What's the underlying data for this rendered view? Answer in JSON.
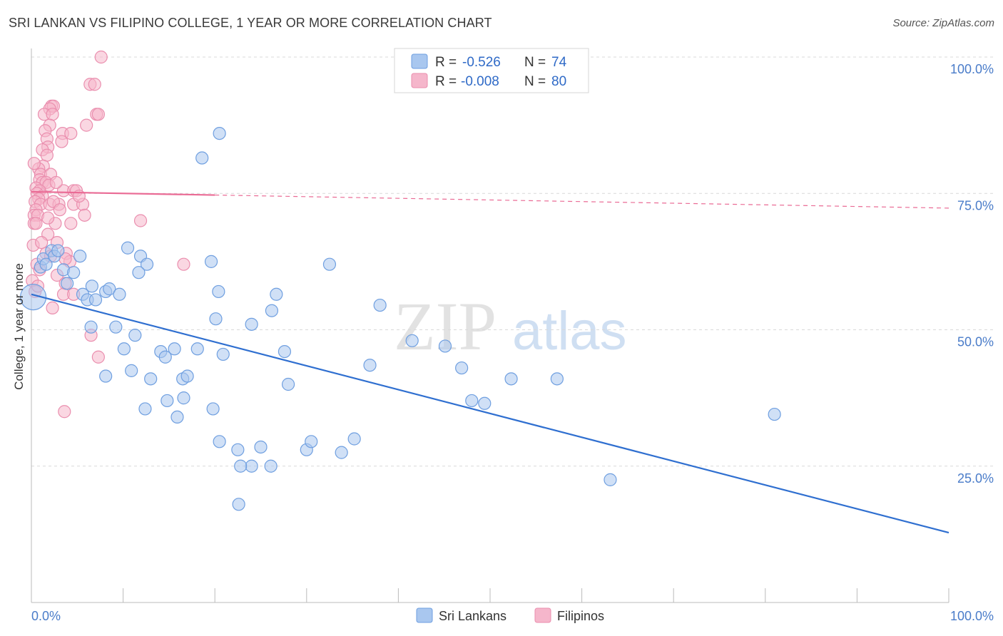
{
  "title": "SRI LANKAN VS FILIPINO COLLEGE, 1 YEAR OR MORE CORRELATION CHART",
  "source": "Source: ZipAtlas.com",
  "watermark": {
    "zip": "ZIP",
    "atlas": "atlas"
  },
  "colors": {
    "blue_fill": "#a9c7ef",
    "blue_stroke": "#6f9fe0",
    "blue_line": "#2f6fd0",
    "pink_fill": "#f5b6cb",
    "pink_stroke": "#ea8eae",
    "pink_line": "#ea6b95",
    "grid": "#d9d9d9",
    "axis_text": "#4a7cc9"
  },
  "chart_data": {
    "type": "scatter",
    "title": "SRI LANKAN VS FILIPINO COLLEGE, 1 YEAR OR MORE CORRELATION CHART",
    "xlabel": "",
    "ylabel": "College, 1 year or more",
    "xlim": [
      0,
      100
    ],
    "ylim": [
      0,
      100
    ],
    "x_tick_labels": [
      "0.0%",
      "100.0%"
    ],
    "y_tick_labels": [
      {
        "value": 100,
        "label": "100.0%"
      },
      {
        "value": 75,
        "label": "75.0%"
      },
      {
        "value": 50,
        "label": "50.0%"
      },
      {
        "value": 25,
        "label": "25.0%"
      }
    ],
    "legend": [
      {
        "name": "Sri Lankans",
        "r_label": "R =",
        "r": "-0.526",
        "n_label": "N =",
        "n": "74"
      },
      {
        "name": "Filipinos",
        "r_label": "R =",
        "r": "-0.008",
        "n_label": "N =",
        "n": "80"
      }
    ],
    "series": [
      {
        "name": "Sri Lankans",
        "trend": {
          "x0": 0,
          "y0": 56.5,
          "x1": 100,
          "y1": 12.8
        },
        "points": [
          [
            0.2,
            56
          ],
          [
            1.0,
            61.5
          ],
          [
            1.3,
            63
          ],
          [
            1.6,
            62
          ],
          [
            2.2,
            64.5
          ],
          [
            2.5,
            63.5
          ],
          [
            2.9,
            64.5
          ],
          [
            3.5,
            61
          ],
          [
            3.9,
            58.5
          ],
          [
            4.6,
            60.5
          ],
          [
            5.3,
            63.5
          ],
          [
            5.6,
            56.5
          ],
          [
            6.1,
            55.5
          ],
          [
            6.6,
            58
          ],
          [
            7.0,
            55.5
          ],
          [
            8.1,
            57
          ],
          [
            8.5,
            57.5
          ],
          [
            9.6,
            56.5
          ],
          [
            10.5,
            65
          ],
          [
            11.9,
            63.5
          ],
          [
            12.6,
            62
          ],
          [
            11.7,
            60.5
          ],
          [
            6.5,
            50.5
          ],
          [
            9.2,
            50.5
          ],
          [
            11.3,
            49
          ],
          [
            10.1,
            46.5
          ],
          [
            14.1,
            46
          ],
          [
            14.6,
            45
          ],
          [
            15.6,
            46.5
          ],
          [
            18.1,
            46.5
          ],
          [
            20.9,
            45.5
          ],
          [
            20.1,
            52
          ],
          [
            19.6,
            62.5
          ],
          [
            20.4,
            57
          ],
          [
            26.7,
            56.5
          ],
          [
            26.2,
            53.5
          ],
          [
            24.0,
            51
          ],
          [
            27.6,
            46
          ],
          [
            32.5,
            62
          ],
          [
            36.9,
            43.5
          ],
          [
            38.0,
            54.5
          ],
          [
            41.5,
            48
          ],
          [
            45.1,
            47
          ],
          [
            46.9,
            43
          ],
          [
            52.3,
            41
          ],
          [
            48.0,
            37
          ],
          [
            49.4,
            36.5
          ],
          [
            57.3,
            41
          ],
          [
            81.0,
            34.5
          ],
          [
            10.9,
            42.5
          ],
          [
            13.0,
            41
          ],
          [
            14.8,
            37
          ],
          [
            16.5,
            41
          ],
          [
            17.0,
            41.5
          ],
          [
            16.6,
            37.5
          ],
          [
            12.4,
            35.5
          ],
          [
            15.9,
            34
          ],
          [
            19.8,
            35.5
          ],
          [
            20.5,
            29.5
          ],
          [
            22.5,
            28
          ],
          [
            24.0,
            25
          ],
          [
            25.0,
            28.5
          ],
          [
            26.1,
            25
          ],
          [
            28.0,
            40
          ],
          [
            30.0,
            28
          ],
          [
            30.5,
            29.5
          ],
          [
            33.8,
            27.5
          ],
          [
            35.2,
            30
          ],
          [
            22.8,
            25
          ],
          [
            22.6,
            18
          ],
          [
            8.1,
            41.5
          ],
          [
            63.1,
            22.5
          ],
          [
            18.6,
            81.5
          ],
          [
            20.5,
            86
          ]
        ]
      },
      {
        "name": "Filipinos",
        "trend": {
          "x0": 0,
          "y0": 75.3,
          "x1": 100,
          "y1": 72.3
        },
        "points": [
          [
            7.6,
            100
          ],
          [
            6.4,
            95
          ],
          [
            6.9,
            95
          ],
          [
            2.2,
            91
          ],
          [
            2.4,
            91
          ],
          [
            2.0,
            90.5
          ],
          [
            1.4,
            89.5
          ],
          [
            2.3,
            89.5
          ],
          [
            7.1,
            89.5
          ],
          [
            7.3,
            89.5
          ],
          [
            2.0,
            87.5
          ],
          [
            6.0,
            87.5
          ],
          [
            1.5,
            86.5
          ],
          [
            3.4,
            86
          ],
          [
            4.3,
            86
          ],
          [
            1.7,
            85
          ],
          [
            3.3,
            84.5
          ],
          [
            1.8,
            83.5
          ],
          [
            1.2,
            83
          ],
          [
            1.7,
            82
          ],
          [
            1.3,
            80
          ],
          [
            0.8,
            79.5
          ],
          [
            1.0,
            78.5
          ],
          [
            2.1,
            78.5
          ],
          [
            0.9,
            77.5
          ],
          [
            1.2,
            77
          ],
          [
            1.6,
            77
          ],
          [
            1.9,
            76.5
          ],
          [
            0.5,
            76
          ],
          [
            0.9,
            75.5
          ],
          [
            3.5,
            75.5
          ],
          [
            4.6,
            75.5
          ],
          [
            4.9,
            75.5
          ],
          [
            0.6,
            75
          ],
          [
            1.2,
            74.5
          ],
          [
            0.8,
            74
          ],
          [
            0.4,
            73.5
          ],
          [
            1.0,
            73
          ],
          [
            2.0,
            73
          ],
          [
            3.0,
            73
          ],
          [
            4.6,
            73
          ],
          [
            5.6,
            73
          ],
          [
            0.5,
            72
          ],
          [
            0.3,
            71
          ],
          [
            0.7,
            71
          ],
          [
            5.8,
            71
          ],
          [
            0.3,
            69.5
          ],
          [
            0.5,
            69.5
          ],
          [
            2.6,
            69.5
          ],
          [
            4.3,
            69.5
          ],
          [
            11.9,
            70
          ],
          [
            1.8,
            67.5
          ],
          [
            0.2,
            65.5
          ],
          [
            1.6,
            64
          ],
          [
            2.1,
            63.5
          ],
          [
            3.8,
            64
          ],
          [
            4.2,
            62.5
          ],
          [
            3.7,
            63
          ],
          [
            16.6,
            62
          ],
          [
            0.6,
            62
          ],
          [
            2.8,
            60
          ],
          [
            0.1,
            59
          ],
          [
            3.7,
            58.5
          ],
          [
            3.5,
            56.5
          ],
          [
            4.6,
            56.5
          ],
          [
            2.3,
            54
          ],
          [
            6.5,
            49
          ],
          [
            7.3,
            45
          ],
          [
            3.6,
            35
          ],
          [
            0.9,
            61
          ],
          [
            0.4,
            57
          ],
          [
            2.8,
            66
          ],
          [
            1.1,
            66
          ],
          [
            5.2,
            74.5
          ],
          [
            0.3,
            80.5
          ],
          [
            2.7,
            77
          ],
          [
            1.8,
            70.5
          ],
          [
            2.4,
            73.5
          ],
          [
            0.7,
            58
          ],
          [
            3.1,
            72
          ]
        ]
      }
    ]
  }
}
